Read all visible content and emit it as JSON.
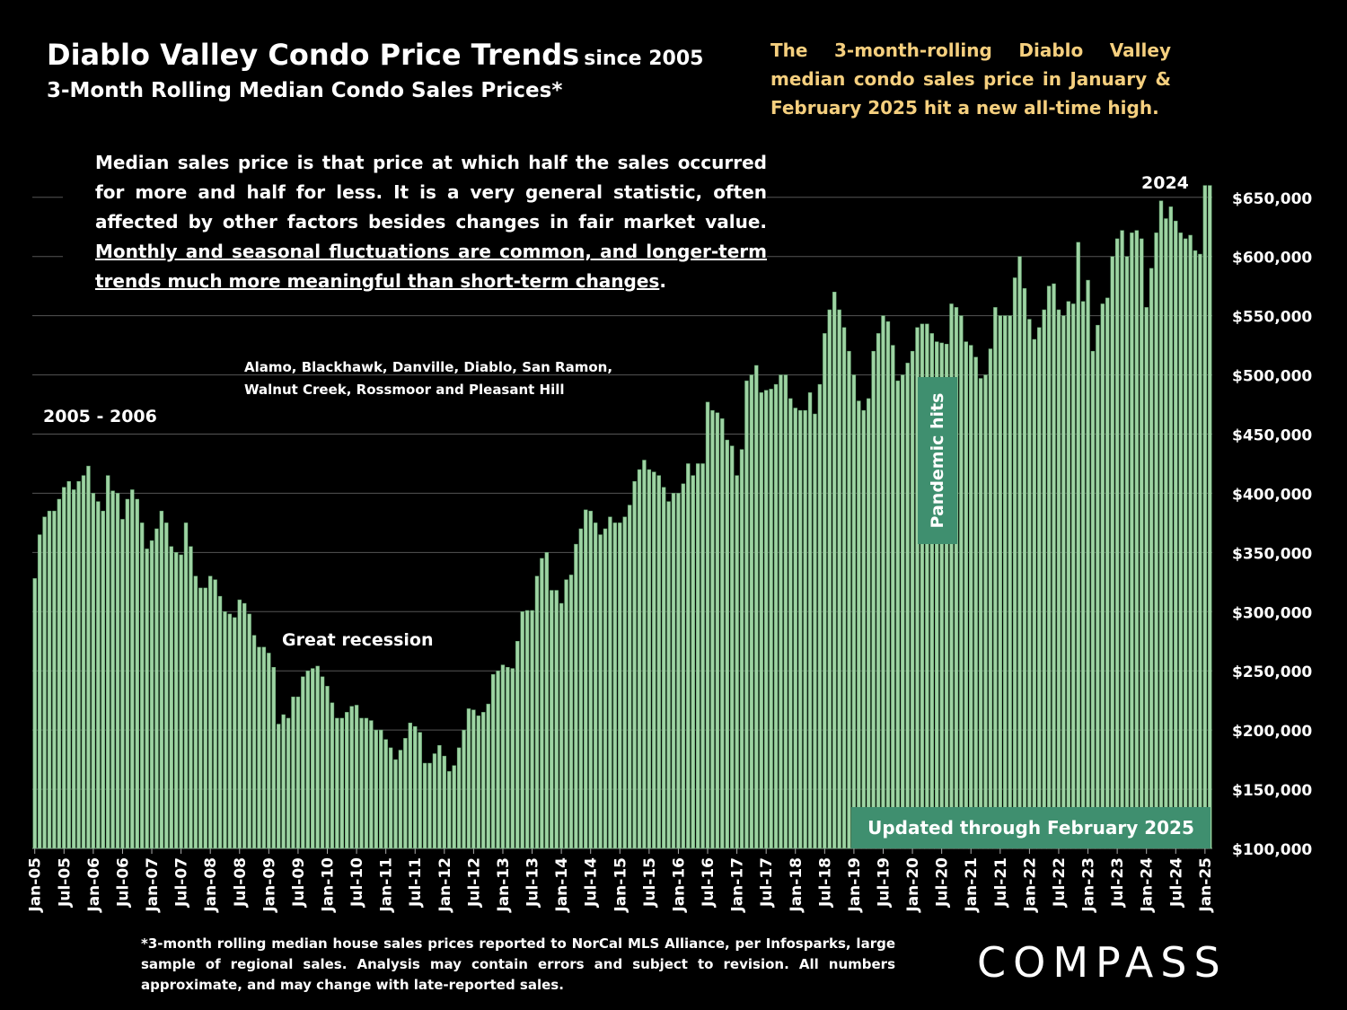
{
  "chart_data": {
    "type": "bar",
    "title": "Diablo Valley Condo Price Trends",
    "title_suffix": "since 2005",
    "subtitle": "3-Month Rolling Median Condo Sales Prices*",
    "headline": "The 3-month-rolling Diablo Valley median condo sales price in January & February 2025 hit a new all-time high.",
    "note": {
      "text": "Median sales price is that price at which half the sales occurred for more and half for less. It is a very general statistic, often affected by other factors besides changes in fair market value.",
      "underlined": "Monthly and seasonal fluctuations are common, and longer-term trends much more meaningful than short-term changes",
      "end": "."
    },
    "regions": [
      "Alamo, Blackhawk, Danville, Diablo, San Ramon,",
      "Walnut Creek, Rossmoor and Pleasant Hill"
    ],
    "annotations": {
      "peak_2005": "2005 - 2006",
      "recession": "Great recession",
      "year_2024": "2024",
      "pandemic": "Pandemic hits",
      "updated": "Updated through February 2025"
    },
    "footnote": "*3-month rolling median house sales prices reported to NorCal MLS Alliance, per Infosparks, large sample of regional sales. Analysis may contain errors and subject to revision. All numbers approximate, and may change with late-reported sales.",
    "brand": "COMPASS",
    "color": "#9ed3a3",
    "grid": true,
    "ylim": [
      100000,
      665000
    ],
    "yticks": [
      {
        "value": 100000,
        "label": "$100,000"
      },
      {
        "value": 150000,
        "label": "$150,000"
      },
      {
        "value": 200000,
        "label": "$200,000"
      },
      {
        "value": 250000,
        "label": "$250,000"
      },
      {
        "value": 300000,
        "label": "$300,000"
      },
      {
        "value": 350000,
        "label": "$350,000"
      },
      {
        "value": 400000,
        "label": "$400,000"
      },
      {
        "value": 450000,
        "label": "$450,000"
      },
      {
        "value": 500000,
        "label": "$500,000"
      },
      {
        "value": 550000,
        "label": "$550,000"
      },
      {
        "value": 600000,
        "label": "$600,000"
      },
      {
        "value": 650000,
        "label": "$650,000"
      }
    ],
    "categories": [
      "Jan-05",
      null,
      null,
      null,
      null,
      null,
      "Jul-05",
      null,
      null,
      null,
      null,
      null,
      "Jan-06",
      null,
      null,
      null,
      null,
      null,
      "Jul-06",
      null,
      null,
      null,
      null,
      null,
      "Jan-07",
      null,
      null,
      null,
      null,
      null,
      "Jul-07",
      null,
      null,
      null,
      null,
      null,
      "Jan-08",
      null,
      null,
      null,
      null,
      null,
      "Jul-08",
      null,
      null,
      null,
      null,
      null,
      "Jan-09",
      null,
      null,
      null,
      null,
      null,
      "Jul-09",
      null,
      null,
      null,
      null,
      null,
      "Jan-10",
      null,
      null,
      null,
      null,
      null,
      "Jul-10",
      null,
      null,
      null,
      null,
      null,
      "Jan-11",
      null,
      null,
      null,
      null,
      null,
      "Jul-11",
      null,
      null,
      null,
      null,
      null,
      "Jan-12",
      null,
      null,
      null,
      null,
      null,
      "Jul-12",
      null,
      null,
      null,
      null,
      null,
      "Jan-13",
      null,
      null,
      null,
      null,
      null,
      "Jul-13",
      null,
      null,
      null,
      null,
      null,
      "Jan-14",
      null,
      null,
      null,
      null,
      null,
      "Jul-14",
      null,
      null,
      null,
      null,
      null,
      "Jan-15",
      null,
      null,
      null,
      null,
      null,
      "Jul-15",
      null,
      null,
      null,
      null,
      null,
      "Jan-16",
      null,
      null,
      null,
      null,
      null,
      "Jul-16",
      null,
      null,
      null,
      null,
      null,
      "Jan-17",
      null,
      null,
      null,
      null,
      null,
      "Jul-17",
      null,
      null,
      null,
      null,
      null,
      "Jan-18",
      null,
      null,
      null,
      null,
      null,
      "Jul-18",
      null,
      null,
      null,
      null,
      null,
      "Jan-19",
      null,
      null,
      null,
      null,
      null,
      "Jul-19",
      null,
      null,
      null,
      null,
      null,
      "Jan-20",
      null,
      null,
      null,
      null,
      null,
      "Jul-20",
      null,
      null,
      null,
      null,
      null,
      "Jan-21",
      null,
      null,
      null,
      null,
      null,
      "Jul-21",
      null,
      null,
      null,
      null,
      null,
      "Jan-22",
      null,
      null,
      null,
      null,
      null,
      "Jul-22",
      null,
      null,
      null,
      null,
      null,
      "Jan-23",
      null,
      null,
      null,
      null,
      null,
      "Jul-23",
      null,
      null,
      null,
      null,
      null,
      "Jan-24",
      null,
      null,
      null,
      null,
      null,
      "Jul-24",
      null,
      null,
      null,
      null,
      null,
      "Jan-25",
      null
    ],
    "values": [
      328000,
      365000,
      380000,
      385000,
      385000,
      395000,
      405000,
      410000,
      403000,
      410000,
      415000,
      423000,
      400000,
      393000,
      385000,
      415000,
      402000,
      400000,
      378000,
      395000,
      403000,
      395000,
      375000,
      353000,
      360000,
      370000,
      385000,
      375000,
      355000,
      350000,
      348000,
      375000,
      355000,
      330000,
      320000,
      320000,
      330000,
      327000,
      313000,
      300000,
      298000,
      295000,
      310000,
      307000,
      298000,
      280000,
      270000,
      270000,
      265000,
      253000,
      205000,
      213000,
      210000,
      228000,
      228000,
      245000,
      250000,
      252000,
      254000,
      245000,
      237000,
      223000,
      210000,
      210000,
      215000,
      220000,
      221000,
      210000,
      210000,
      208000,
      200000,
      200000,
      192000,
      185000,
      175000,
      183000,
      193000,
      206000,
      203000,
      198000,
      172000,
      172000,
      180000,
      187000,
      178000,
      165000,
      170000,
      185000,
      200000,
      218000,
      217000,
      212000,
      215000,
      222000,
      247000,
      250000,
      255000,
      253000,
      252000,
      275000,
      300000,
      301000,
      301000,
      330000,
      345000,
      350000,
      318000,
      318000,
      307000,
      327000,
      331000,
      357000,
      370000,
      386000,
      385000,
      375000,
      365000,
      370000,
      380000,
      375000,
      375000,
      380000,
      390000,
      410000,
      420000,
      428000,
      420000,
      418000,
      415000,
      405000,
      393000,
      400000,
      400000,
      408000,
      425000,
      415000,
      425000,
      425000,
      477000,
      470000,
      468000,
      463000,
      445000,
      440000,
      415000,
      437000,
      495000,
      500000,
      508000,
      485000,
      487000,
      488000,
      492000,
      500000,
      500000,
      480000,
      472000,
      470000,
      470000,
      485000,
      467000,
      492000,
      535000,
      555000,
      570000,
      555000,
      540000,
      520000,
      500000,
      478000,
      470000,
      480000,
      520000,
      535000,
      550000,
      545000,
      525000,
      495000,
      500000,
      510000,
      520000,
      540000,
      543000,
      543000,
      535000,
      528000,
      527000,
      526000,
      560000,
      557000,
      550000,
      528000,
      525000,
      515000,
      497000,
      500000,
      522000,
      557000,
      550000,
      550000,
      550000,
      582000,
      600000,
      573000,
      547000,
      530000,
      540000,
      555000,
      575000,
      577000,
      555000,
      550000,
      562000,
      560000,
      612000,
      562000,
      580000,
      520000,
      542000,
      560000,
      565000,
      600000,
      615000,
      622000,
      600000,
      620000,
      622000,
      615000,
      557000,
      590000,
      620000,
      647000,
      632000,
      642000,
      630000,
      620000,
      615000,
      618000,
      605000,
      602000,
      660000,
      660000
    ]
  }
}
